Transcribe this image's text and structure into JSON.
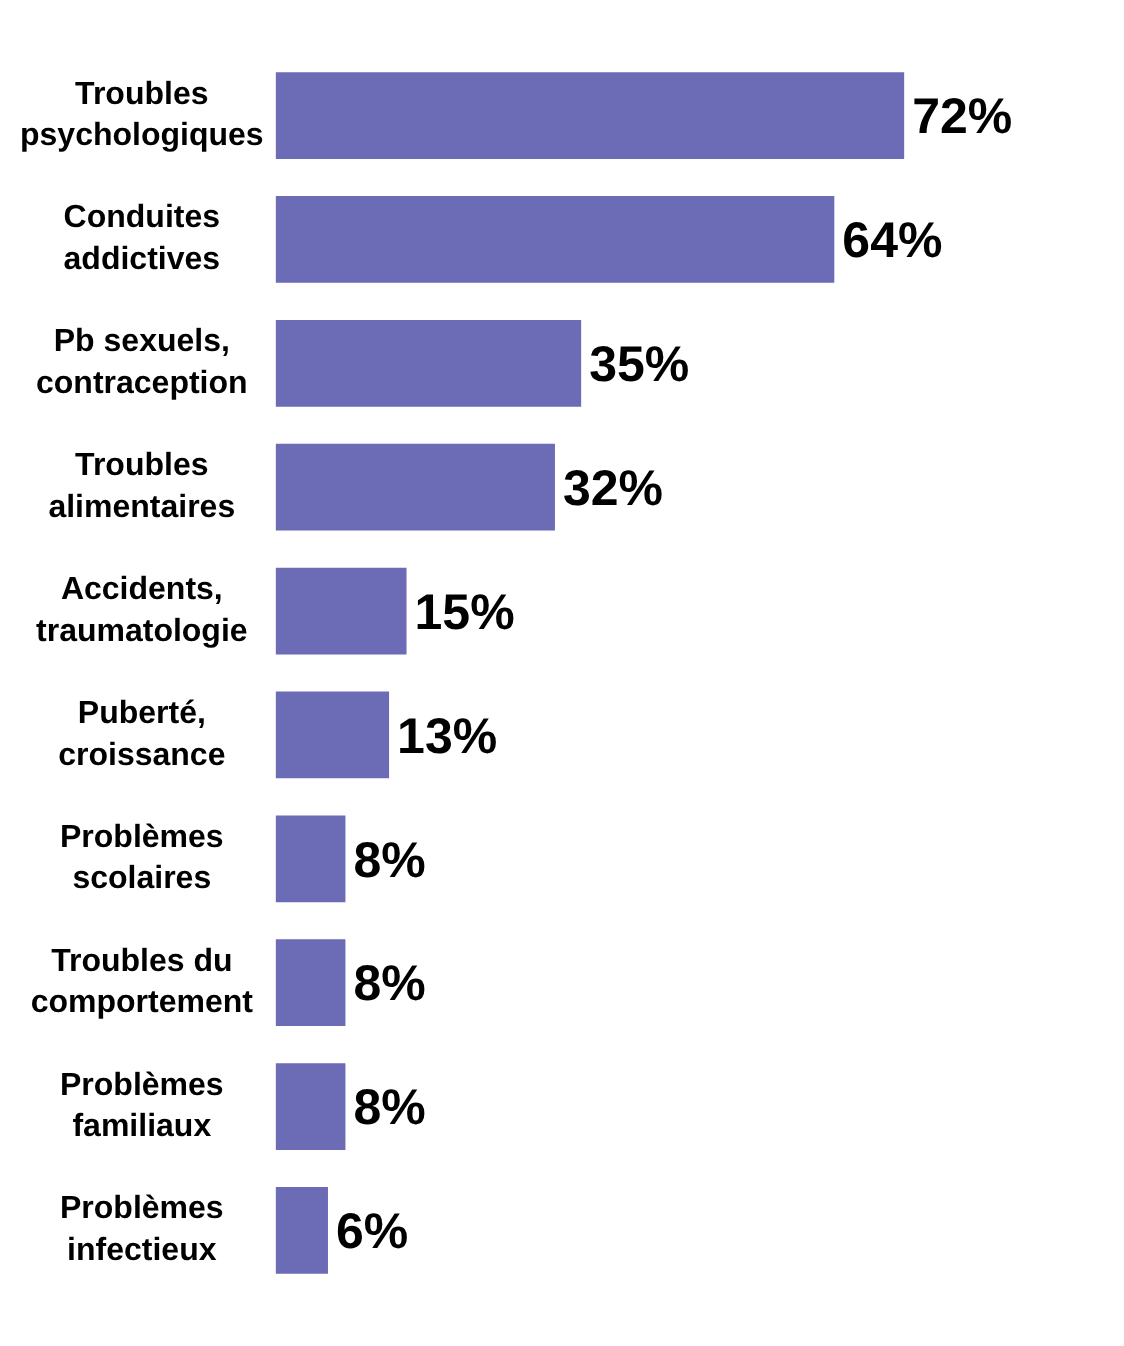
{
  "chart_data": {
    "type": "bar",
    "orientation": "horizontal",
    "legend": false,
    "tick_labels": "y",
    "categories": [
      "Troubles\npsychologiques",
      "Conduites\naddictives",
      "Pb sexuels,\ncontraception",
      "Troubles\nalimentaires",
      "Accidents,\ntraumatologie",
      "Puberté,\ncroissance",
      "Problèmes\nscolaires",
      "Troubles du\ncomportement",
      "Problèmes\nfamiliaux",
      "Problèmes\ninfectieux"
    ],
    "values": [
      72,
      64,
      35,
      32,
      15,
      13,
      8,
      8,
      8,
      6
    ],
    "value_labels": [
      "72%",
      "64%",
      "35%",
      "32%",
      "15%",
      "13%",
      "8%",
      "8%",
      "8%",
      "6%"
    ],
    "color": "#6b6bb6"
  }
}
